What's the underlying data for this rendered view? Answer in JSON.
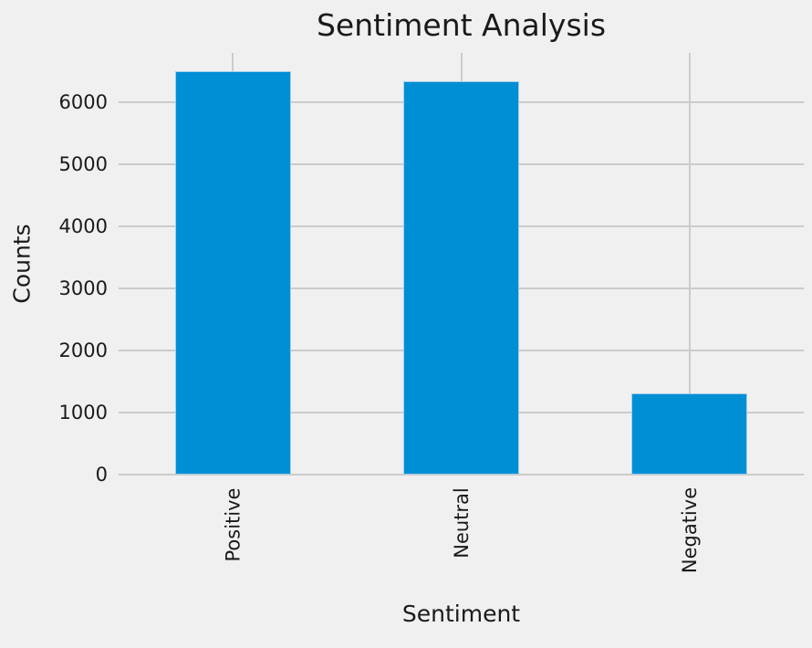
{
  "chart_data": {
    "type": "bar",
    "title": "Sentiment Analysis",
    "xlabel": "Sentiment",
    "ylabel": "Counts",
    "categories": [
      "Positive",
      "Neutral",
      "Negative"
    ],
    "series": [
      {
        "name": "Counts",
        "values": [
          6505,
          6340,
          1310
        ]
      }
    ],
    "yticks": [
      0,
      1000,
      2000,
      3000,
      4000,
      5000,
      6000
    ],
    "ylim": [
      0,
      6800
    ],
    "grid": true,
    "legend_position": "none",
    "bar_width_fraction": 0.5,
    "xtick_rotation_degrees": 90,
    "colors": {
      "figure_background": "#f0f0f0",
      "grid_color": "#cbcbcb",
      "bar_fill": "#008fd5",
      "bar_edge": "#a5cfe9",
      "text_color": "#1a1a1a"
    }
  }
}
